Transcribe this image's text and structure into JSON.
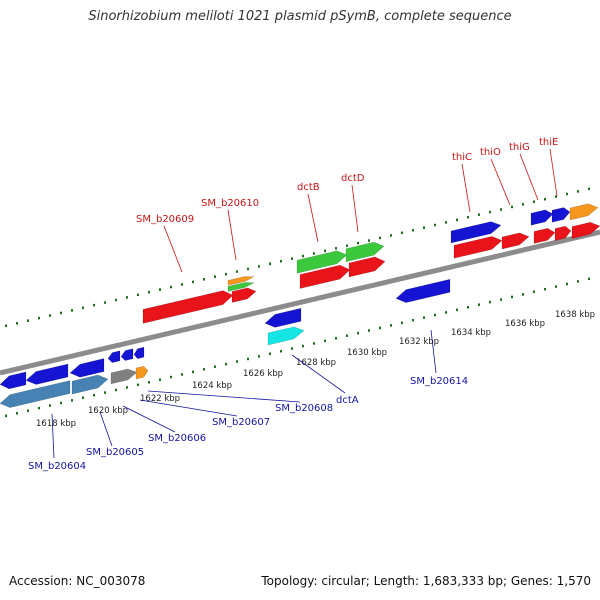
{
  "header": {
    "title": "Sinorhizobium meliloti 1021 plasmid pSymB, complete sequence"
  },
  "footer": {
    "accession": "Accession: NC_003078",
    "summary": "Topology: circular; Length: 1,683,333 bp; Genes: 1,570"
  },
  "colors": {
    "red": "#e8141a",
    "blue": "#1414d2",
    "green": "#3cc83c",
    "orange": "#f5961e",
    "cyan": "#14e6e6",
    "steel": "#4682b4",
    "gray": "#808080",
    "top_label": "#c81414",
    "bottom_label": "#1414a0",
    "backbone": "#8c8c8c",
    "tick": "#1e6e1e"
  },
  "scale_labels": [
    "1618 kbp",
    "1620 kbp",
    "1622 kbp",
    "1624 kbp",
    "1626 kbp",
    "1628 kbp",
    "1630 kbp",
    "1632 kbp",
    "1634 kbp",
    "1636 kbp",
    "1638 kbp"
  ],
  "top_gene_labels": [
    "SM_b20609",
    "SM_b20610",
    "dctB",
    "dctD",
    "thiC",
    "thiO",
    "thiG",
    "thiE"
  ],
  "bottom_gene_labels": [
    "SM_b20604",
    "SM_b20605",
    "SM_b20606",
    "SM_b20607",
    "SM_b20608",
    "dctA",
    "SM_b20614"
  ]
}
